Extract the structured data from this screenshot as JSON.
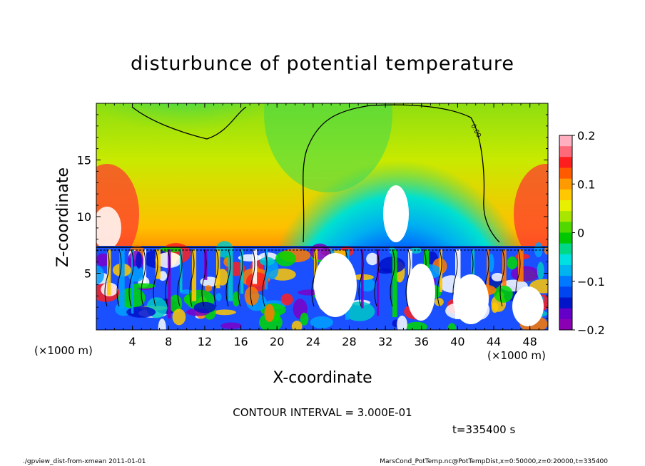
{
  "chart_data": {
    "type": "heatmap",
    "title": "disturbunce of potential temperature",
    "xlabel": "X-coordinate",
    "ylabel": "Z-coordinate",
    "x_unit_left": "(×1000 m)",
    "x_unit_right": "(×1000 m)",
    "xlim": [
      0,
      50
    ],
    "ylim": [
      0,
      20
    ],
    "x_ticks": [
      "4",
      "8",
      "12",
      "16",
      "20",
      "24",
      "28",
      "32",
      "36",
      "40",
      "44",
      "48"
    ],
    "y_ticks": [
      "5",
      "10",
      "15"
    ],
    "colorbar": {
      "range": [
        -0.2,
        0.2
      ],
      "ticks": [
        "0.2",
        "0.1",
        "0",
        "−0.1",
        "−0.2"
      ],
      "colors_top_to_bottom": [
        "#ffb0c0",
        "#ff6a7a",
        "#ff1e1e",
        "#ff5a00",
        "#ff9a00",
        "#ffc800",
        "#e6f000",
        "#a8e600",
        "#50d800",
        "#00c800",
        "#00d888",
        "#00e0e0",
        "#00b4f0",
        "#0078ff",
        "#0046f0",
        "#0014c8",
        "#6400c8",
        "#8c00b4"
      ]
    },
    "contour_label": "0.00",
    "contour_interval_text": "CONTOUR INTERVAL = 3.000E-01",
    "time_text": "t=335400 s"
  },
  "footer": {
    "left": "./gpview_dist-from-xmean  2011-01-01",
    "right": "MarsCond_PotTemp.nc@PotTempDist,x=0:50000,z=0:20000,t=335400"
  }
}
